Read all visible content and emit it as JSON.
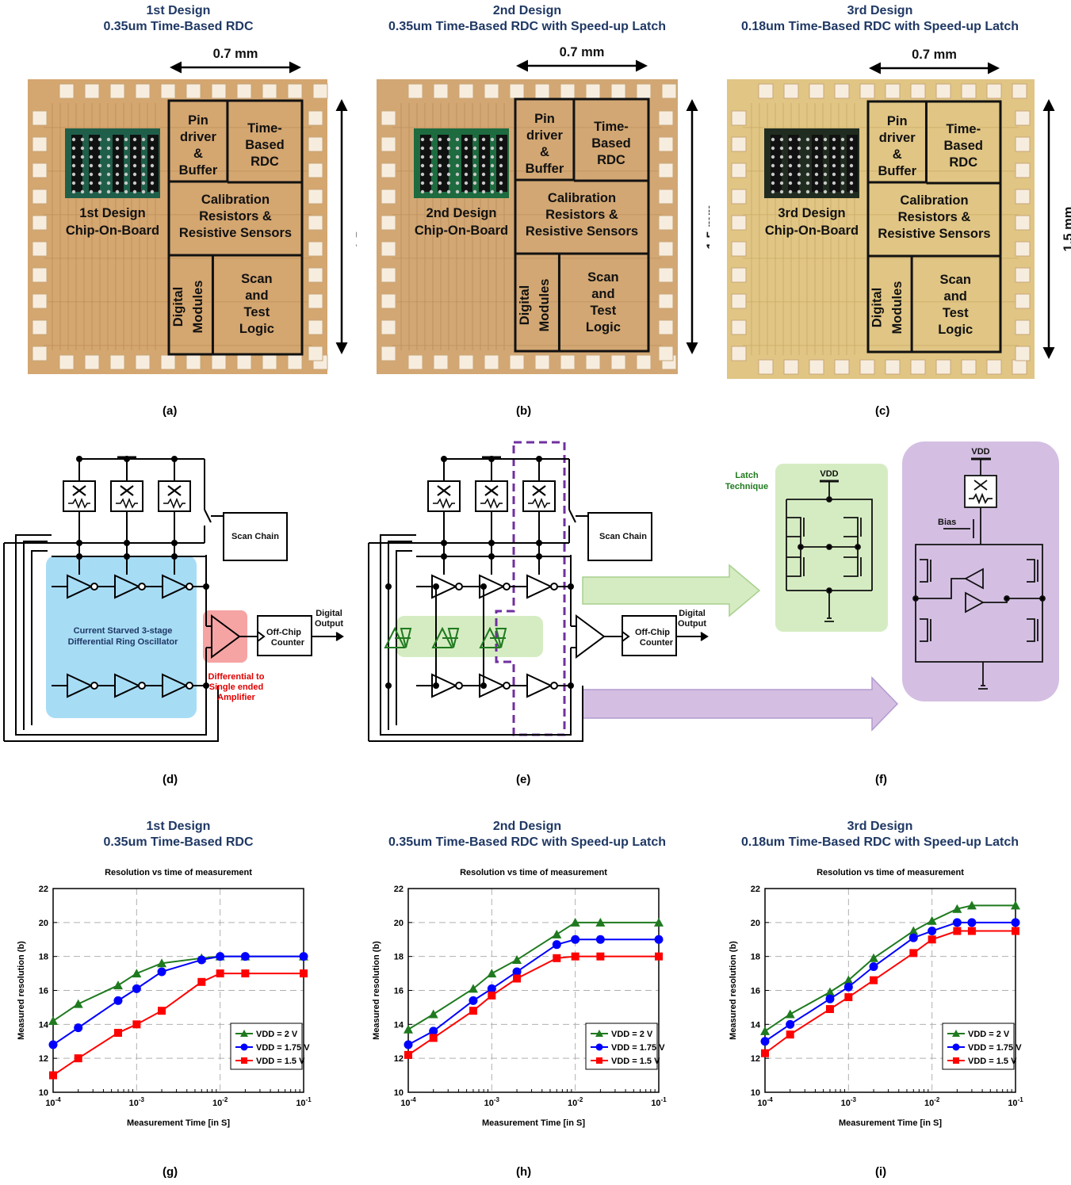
{
  "panels": [
    {
      "design": "1st Design",
      "title": "0.35um Time-Based RDC",
      "cap": "(a)"
    },
    {
      "design": "2nd Design",
      "title": "0.35um Time-Based RDC with Speed-up Latch",
      "cap": "(b)"
    },
    {
      "design": "3rd Design",
      "title": "0.18um Time-Based RDC with Speed-up Latch",
      "cap": "(c)"
    }
  ],
  "chip": {
    "width_label": "0.7 mm",
    "height_label": "1.5 mm",
    "blocks": {
      "pin_driver": [
        "Pin",
        "driver",
        "&",
        "Buffer"
      ],
      "rdc": [
        "Time-",
        "Based",
        "RDC"
      ],
      "cal": [
        "Calibration",
        "Resistors &",
        "Resistive Sensors"
      ],
      "digital": [
        "Digital",
        "Modules"
      ],
      "scan": [
        "Scan",
        "and",
        "Test",
        "Logic"
      ]
    },
    "cob": [
      "1st Design",
      "Chip-On-Board"
    ],
    "cob2": [
      "2nd Design",
      "Chip-On-Board"
    ],
    "cob3": [
      "3rd Design",
      "Chip-On-Board"
    ]
  },
  "circuit": {
    "scan_chain": "Scan Chain",
    "osc_label": [
      "Current Starved 3-stage",
      "Differential Ring Oscillator"
    ],
    "amp_label": [
      "Differential to",
      "Single ended",
      "Amplifier"
    ],
    "counter": [
      "Off-Chip",
      "Counter"
    ],
    "output": [
      "Digital",
      "Output"
    ],
    "latch_technique": [
      "Latch",
      "Technique"
    ],
    "vdd": "VDD",
    "bias": "Bias",
    "caps": [
      "(d)",
      "(e)",
      "(f)"
    ]
  },
  "colors": {
    "title": "#1f3864",
    "green": "#1f7a1f",
    "blue": "#0000ff",
    "red": "#ff0000",
    "osc_bg": "#a7dcf5",
    "amp_bg": "#f5a3a3",
    "latch_bg": "#d5ecc2",
    "purple_bg": "#d4bfe3",
    "purple_line": "#7030a0"
  },
  "plots": [
    {
      "design": "1st Design",
      "title": "0.35um Time-Based RDC",
      "cap": "(g)"
    },
    {
      "design": "2nd Design",
      "title": "0.35um Time-Based RDC with Speed-up Latch",
      "cap": "(h)"
    },
    {
      "design": "3rd Design",
      "title": "0.18um Time-Based RDC with Speed-up Latch",
      "cap": "(i)"
    }
  ],
  "chart_data": [
    {
      "type": "line",
      "title": "Resolution vs time of measurement",
      "xlabel": "Measurement Time [in S]",
      "ylabel": "Measured resolution (b)",
      "xscale": "log",
      "xlim": [
        0.0001,
        0.1
      ],
      "ylim": [
        10,
        22
      ],
      "yticks": [
        10,
        12,
        14,
        16,
        18,
        20,
        22
      ],
      "xticks": [
        "10-4",
        "10-3",
        "10-2",
        "10-1"
      ],
      "grid": true,
      "legend": "bottom-right",
      "x": [
        0.0001,
        0.0002,
        0.0006,
        0.001,
        0.002,
        0.006,
        0.01,
        0.02,
        0.1
      ],
      "series": [
        {
          "name": "VDD = 2 V",
          "color": "#1f7a1f",
          "marker": "triangle",
          "values": [
            14.2,
            15.2,
            16.3,
            17.0,
            17.6,
            17.9,
            18.0,
            18.0,
            18.0
          ]
        },
        {
          "name": "VDD = 1.75 V",
          "color": "#0000ff",
          "marker": "circle",
          "values": [
            12.8,
            13.8,
            15.4,
            16.1,
            17.1,
            17.8,
            18.0,
            18.0,
            18.0
          ]
        },
        {
          "name": "VDD = 1.5 V",
          "color": "#ff0000",
          "marker": "square",
          "values": [
            11.0,
            12.0,
            13.5,
            14.0,
            14.8,
            16.5,
            17.0,
            17.0,
            17.0
          ]
        }
      ]
    },
    {
      "type": "line",
      "title": "Resolution vs time of measurement",
      "xlabel": "Measurement Time [in S]",
      "ylabel": "Measured resolution (b)",
      "xscale": "log",
      "xlim": [
        0.0001,
        0.1
      ],
      "ylim": [
        10,
        22
      ],
      "yticks": [
        10,
        12,
        14,
        16,
        18,
        20,
        22
      ],
      "xticks": [
        "10-4",
        "10-3",
        "10-2",
        "10-1"
      ],
      "grid": true,
      "legend": "bottom-right",
      "x": [
        0.0001,
        0.0002,
        0.0006,
        0.001,
        0.002,
        0.006,
        0.01,
        0.02,
        0.1
      ],
      "series": [
        {
          "name": "VDD = 2 V",
          "color": "#1f7a1f",
          "marker": "triangle",
          "values": [
            13.7,
            14.6,
            16.1,
            17.0,
            17.8,
            19.3,
            20.0,
            20.0,
            20.0
          ]
        },
        {
          "name": "VDD = 1.75 V",
          "color": "#0000ff",
          "marker": "circle",
          "values": [
            12.8,
            13.6,
            15.4,
            16.1,
            17.1,
            18.7,
            19.0,
            19.0,
            19.0
          ]
        },
        {
          "name": "VDD = 1.5 V",
          "color": "#ff0000",
          "marker": "square",
          "values": [
            12.2,
            13.2,
            14.8,
            15.7,
            16.7,
            17.9,
            18.0,
            18.0,
            18.0
          ]
        }
      ]
    },
    {
      "type": "line",
      "title": "Resolution vs time of measurement",
      "xlabel": "Measurement Time [in S]",
      "ylabel": "Measured resolution (b)",
      "xscale": "log",
      "xlim": [
        0.0001,
        0.1
      ],
      "ylim": [
        10,
        22
      ],
      "yticks": [
        10,
        12,
        14,
        16,
        18,
        20,
        22
      ],
      "xticks": [
        "10-4",
        "10-3",
        "10-2",
        "10-1"
      ],
      "grid": true,
      "legend": "bottom-right",
      "x": [
        0.0001,
        0.0002,
        0.0006,
        0.001,
        0.002,
        0.006,
        0.01,
        0.02,
        0.03,
        0.1
      ],
      "series": [
        {
          "name": "VDD = 2 V",
          "color": "#1f7a1f",
          "marker": "triangle",
          "values": [
            13.6,
            14.6,
            15.9,
            16.6,
            17.9,
            19.5,
            20.1,
            20.8,
            21.0,
            21.0
          ]
        },
        {
          "name": "VDD = 1.75 V",
          "color": "#0000ff",
          "marker": "circle",
          "values": [
            13.0,
            14.0,
            15.5,
            16.2,
            17.4,
            19.1,
            19.5,
            20.0,
            20.0,
            20.0
          ]
        },
        {
          "name": "VDD = 1.5 V",
          "color": "#ff0000",
          "marker": "square",
          "values": [
            12.3,
            13.4,
            14.9,
            15.6,
            16.6,
            18.2,
            19.0,
            19.5,
            19.5,
            19.5
          ]
        }
      ]
    }
  ]
}
